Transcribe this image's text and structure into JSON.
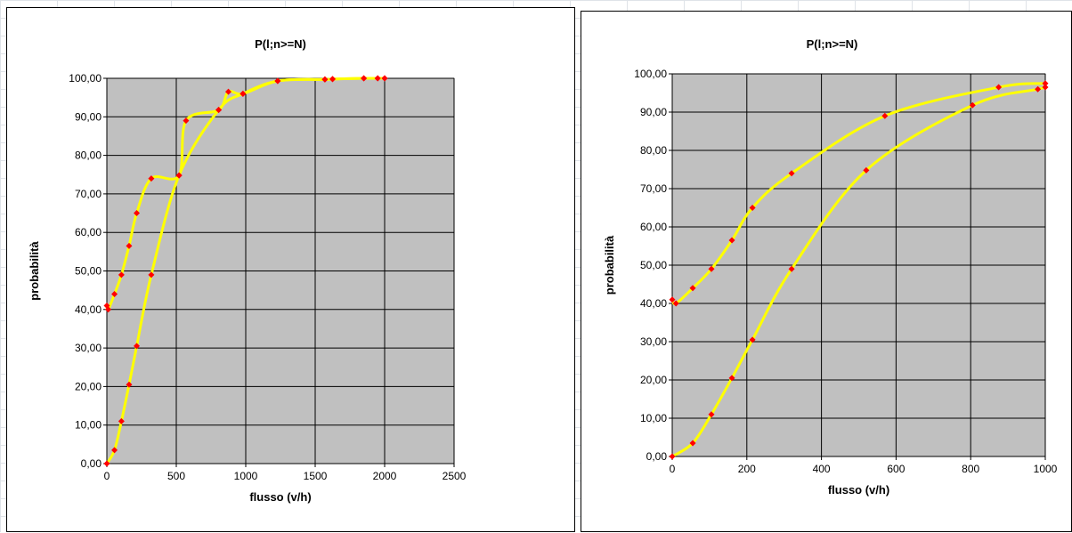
{
  "chart_data": [
    {
      "type": "scatter",
      "title": "P(l;n>=N)",
      "xlabel": "flusso (v/h)",
      "ylabel": "probabilità",
      "xlim": [
        0,
        2500
      ],
      "ylim": [
        0,
        100
      ],
      "x_ticks": [
        "0",
        "500",
        "1000",
        "1500",
        "2000",
        "2500"
      ],
      "y_ticks": [
        "0,00",
        "10,00",
        "20,00",
        "30,00",
        "40,00",
        "50,00",
        "60,00",
        "70,00",
        "80,00",
        "90,00",
        "100,00"
      ],
      "grid": true,
      "plot_background": "#c0c0c0",
      "line_color": "#ffff00",
      "marker_color": "#ff0000",
      "series": [
        {
          "x": [
            0,
            10,
            55,
            105,
            160,
            215,
            320,
            520,
            570,
            805,
            875,
            980,
            1230,
            1570,
            1625,
            1850,
            1950,
            2000
          ],
          "y": [
            41,
            40,
            44,
            49,
            56.5,
            65,
            74,
            74.8,
            89,
            91.8,
            96.5,
            96,
            99.3,
            99.7,
            99.8,
            100,
            100,
            100
          ]
        },
        {
          "x": [
            0,
            55,
            105,
            160,
            215,
            320,
            520,
            805,
            980,
            1230,
            1570,
            1625,
            1850,
            1950,
            2000
          ],
          "y": [
            0,
            3.5,
            11,
            20.5,
            30.5,
            49,
            74.8,
            91.8,
            96,
            99.3,
            99.7,
            99.8,
            100,
            100,
            100
          ]
        }
      ]
    },
    {
      "type": "scatter",
      "title": "P(l;n>=N)",
      "xlabel": "flusso (v/h)",
      "ylabel": "probabilità",
      "xlim": [
        0,
        1000
      ],
      "ylim": [
        0,
        100
      ],
      "x_ticks": [
        "0",
        "200",
        "400",
        "600",
        "800",
        "1000"
      ],
      "y_ticks": [
        "0,00",
        "10,00",
        "20,00",
        "30,00",
        "40,00",
        "50,00",
        "60,00",
        "70,00",
        "80,00",
        "90,00",
        "100,00"
      ],
      "grid": true,
      "plot_background": "#c0c0c0",
      "line_color": "#ffff00",
      "marker_color": "#ff0000",
      "series": [
        {
          "x": [
            0,
            10,
            55,
            105,
            160,
            215,
            320,
            570,
            875,
            1000
          ],
          "y": [
            41,
            40,
            44,
            49,
            56.5,
            65,
            74,
            89,
            96.5,
            97.5
          ]
        },
        {
          "x": [
            0,
            55,
            105,
            160,
            215,
            320,
            520,
            805,
            980,
            1000
          ],
          "y": [
            0,
            3.5,
            11,
            20.5,
            30.5,
            49,
            74.8,
            91.8,
            96,
            96.5
          ]
        }
      ]
    }
  ]
}
